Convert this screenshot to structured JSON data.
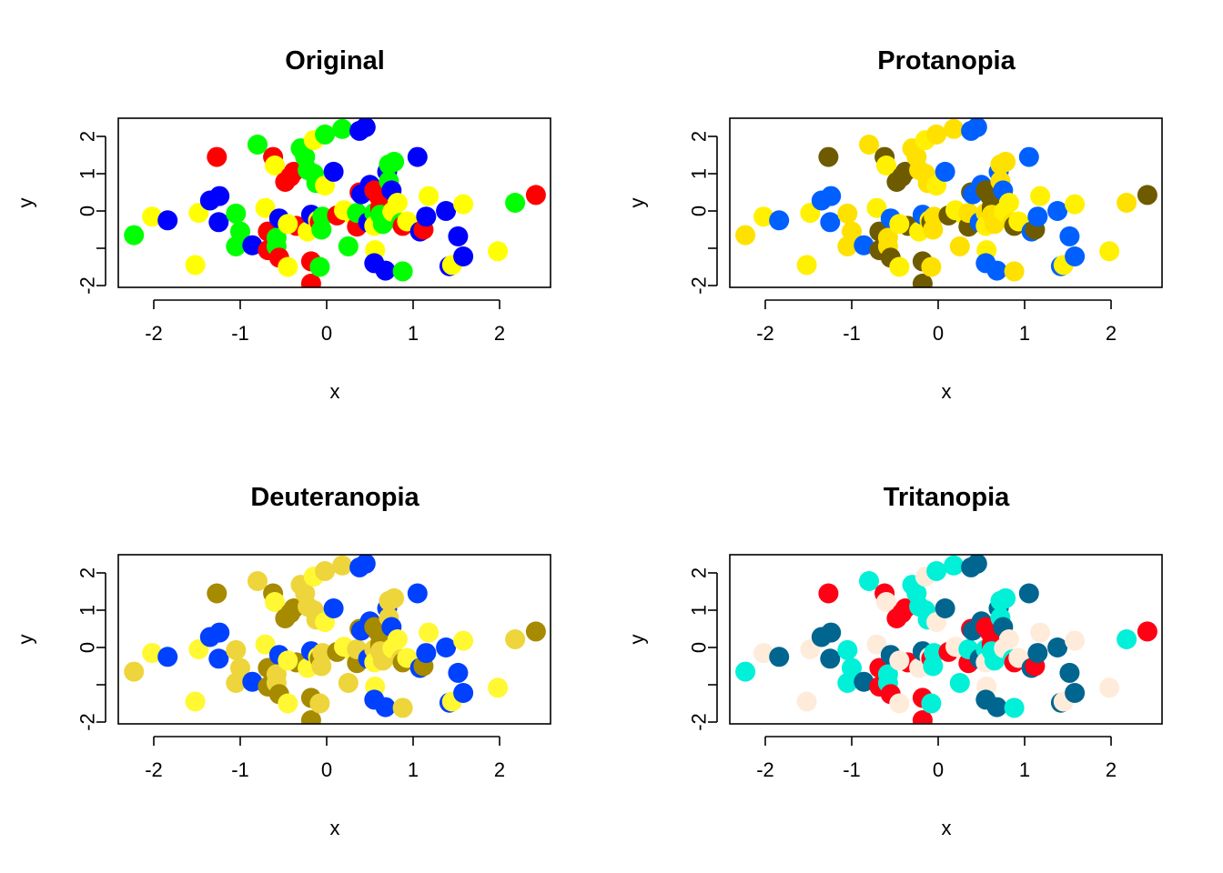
{
  "chart_data": [
    {
      "type": "scatter",
      "title": "Original",
      "xlabel": "x",
      "ylabel": "y",
      "xticks": [
        "-2",
        "-1",
        "0",
        "1",
        "2"
      ],
      "yticks": [
        "2",
        "1",
        "0",
        "",
        "-2"
      ],
      "palette": {
        "red": "#FF0000",
        "green": "#00FF00",
        "blue": "#0000FF",
        "yellow": "#FFFF00"
      }
    },
    {
      "type": "scatter",
      "title": "Protanopia",
      "xlabel": "x",
      "ylabel": "y",
      "xticks": [
        "-2",
        "-1",
        "0",
        "1",
        "2"
      ],
      "yticks": [
        "2",
        "1",
        "0",
        "",
        "-2"
      ],
      "palette": {
        "red": "#6E5B00",
        "green": "#FFE100",
        "blue": "#0060FF",
        "yellow": "#FFF100"
      }
    },
    {
      "type": "scatter",
      "title": "Deuteranopia",
      "xlabel": "x",
      "ylabel": "y",
      "xticks": [
        "-2",
        "-1",
        "0",
        "1",
        "2"
      ],
      "yticks": [
        "2",
        "1",
        "0",
        "",
        "-2"
      ],
      "palette": {
        "red": "#A68A00",
        "green": "#EED53B",
        "blue": "#0040FF",
        "yellow": "#FFF833"
      }
    },
    {
      "type": "scatter",
      "title": "Tritanopia",
      "xlabel": "x",
      "ylabel": "y",
      "xticks": [
        "-2",
        "-1",
        "0",
        "1",
        "2"
      ],
      "yticks": [
        "2",
        "1",
        "0",
        "",
        "-2"
      ],
      "palette": {
        "red": "#FF0014",
        "green": "#00F0D8",
        "blue": "#00658F",
        "yellow": "#FFEBDA"
      }
    }
  ],
  "axes": {
    "xlim": [
      -2.4,
      2.6
    ],
    "ylim": [
      -2.05,
      2.5
    ],
    "xtick_values": [
      -2,
      -1,
      0,
      1,
      2
    ],
    "ytick_values": [
      2,
      1,
      0,
      -1,
      -2
    ]
  },
  "points": [
    {
      "x": -2.23,
      "y": -0.65,
      "c": "green"
    },
    {
      "x": -2.02,
      "y": -0.15,
      "c": "yellow"
    },
    {
      "x": -1.84,
      "y": -0.25,
      "c": "blue"
    },
    {
      "x": -1.52,
      "y": -1.45,
      "c": "yellow"
    },
    {
      "x": -1.48,
      "y": -0.05,
      "c": "yellow"
    },
    {
      "x": -1.35,
      "y": 0.28,
      "c": "blue"
    },
    {
      "x": -1.27,
      "y": 1.45,
      "c": "red"
    },
    {
      "x": -1.24,
      "y": 0.4,
      "c": "blue"
    },
    {
      "x": -1.25,
      "y": -0.3,
      "c": "blue"
    },
    {
      "x": -1.05,
      "y": -0.07,
      "c": "green"
    },
    {
      "x": -1.0,
      "y": -0.55,
      "c": "green"
    },
    {
      "x": -1.05,
      "y": -0.95,
      "c": "green"
    },
    {
      "x": -0.86,
      "y": -0.92,
      "c": "blue"
    },
    {
      "x": -0.8,
      "y": 1.78,
      "c": "green"
    },
    {
      "x": -0.71,
      "y": 0.08,
      "c": "yellow"
    },
    {
      "x": -0.68,
      "y": -0.55,
      "c": "red"
    },
    {
      "x": -0.62,
      "y": 1.45,
      "c": "red"
    },
    {
      "x": -0.6,
      "y": 1.22,
      "c": "yellow"
    },
    {
      "x": -0.68,
      "y": -1.05,
      "c": "red"
    },
    {
      "x": -0.58,
      "y": -0.95,
      "c": "green"
    },
    {
      "x": -0.55,
      "y": -0.2,
      "c": "blue"
    },
    {
      "x": -0.55,
      "y": -1.25,
      "c": "red"
    },
    {
      "x": -0.58,
      "y": -0.72,
      "c": "green"
    },
    {
      "x": -0.48,
      "y": 0.78,
      "c": "red"
    },
    {
      "x": -0.42,
      "y": 0.92,
      "c": "red"
    },
    {
      "x": -0.38,
      "y": 1.05,
      "c": "red"
    },
    {
      "x": -0.35,
      "y": -0.4,
      "c": "red"
    },
    {
      "x": -0.45,
      "y": -0.35,
      "c": "yellow"
    },
    {
      "x": -0.45,
      "y": -1.5,
      "c": "yellow"
    },
    {
      "x": -0.3,
      "y": 1.68,
      "c": "green"
    },
    {
      "x": -0.25,
      "y": 1.45,
      "c": "green"
    },
    {
      "x": -0.22,
      "y": 1.1,
      "c": "green"
    },
    {
      "x": -0.22,
      "y": -0.55,
      "c": "yellow"
    },
    {
      "x": -0.15,
      "y": 1.9,
      "c": "yellow"
    },
    {
      "x": -0.15,
      "y": 1.0,
      "c": "green"
    },
    {
      "x": -0.12,
      "y": 0.75,
      "c": "green"
    },
    {
      "x": -0.18,
      "y": -0.1,
      "c": "blue"
    },
    {
      "x": -0.18,
      "y": -1.35,
      "c": "red"
    },
    {
      "x": -0.18,
      "y": -1.95,
      "c": "red"
    },
    {
      "x": -0.1,
      "y": -0.25,
      "c": "yellow"
    },
    {
      "x": -0.08,
      "y": -0.3,
      "c": "red"
    },
    {
      "x": -0.06,
      "y": -0.5,
      "c": "green"
    },
    {
      "x": -0.08,
      "y": -1.5,
      "c": "green"
    },
    {
      "x": -0.05,
      "y": -0.15,
      "c": "green"
    },
    {
      "x": -0.02,
      "y": 2.05,
      "c": "green"
    },
    {
      "x": -0.02,
      "y": 0.68,
      "c": "yellow"
    },
    {
      "x": 0.08,
      "y": 1.05,
      "c": "blue"
    },
    {
      "x": 0.12,
      "y": -0.12,
      "c": "red"
    },
    {
      "x": 0.18,
      "y": 2.2,
      "c": "green"
    },
    {
      "x": 0.2,
      "y": 0.02,
      "c": "yellow"
    },
    {
      "x": 0.25,
      "y": -0.95,
      "c": "green"
    },
    {
      "x": 0.3,
      "y": -0.1,
      "c": "yellow"
    },
    {
      "x": 0.35,
      "y": -0.42,
      "c": "red"
    },
    {
      "x": 0.35,
      "y": -0.05,
      "c": "green"
    },
    {
      "x": 0.38,
      "y": 2.15,
      "c": "blue"
    },
    {
      "x": 0.45,
      "y": 2.25,
      "c": "blue"
    },
    {
      "x": 0.38,
      "y": 0.5,
      "c": "red"
    },
    {
      "x": 0.4,
      "y": 0.45,
      "c": "blue"
    },
    {
      "x": 0.5,
      "y": 0.7,
      "c": "blue"
    },
    {
      "x": 0.48,
      "y": -0.3,
      "c": "blue"
    },
    {
      "x": 0.55,
      "y": 0.55,
      "c": "red"
    },
    {
      "x": 0.55,
      "y": -0.05,
      "c": "green"
    },
    {
      "x": 0.55,
      "y": -0.4,
      "c": "yellow"
    },
    {
      "x": 0.56,
      "y": -1.05,
      "c": "yellow"
    },
    {
      "x": 0.55,
      "y": -1.4,
      "c": "blue"
    },
    {
      "x": 0.6,
      "y": 0.4,
      "c": "red"
    },
    {
      "x": 0.62,
      "y": 0.1,
      "c": "red"
    },
    {
      "x": 0.62,
      "y": 0.0,
      "c": "red"
    },
    {
      "x": 0.62,
      "y": -0.1,
      "c": "green"
    },
    {
      "x": 0.65,
      "y": -0.35,
      "c": "green"
    },
    {
      "x": 0.68,
      "y": -1.6,
      "c": "blue"
    },
    {
      "x": 0.7,
      "y": 1.05,
      "c": "blue"
    },
    {
      "x": 0.72,
      "y": 1.25,
      "c": "green"
    },
    {
      "x": 0.72,
      "y": 0.8,
      "c": "green"
    },
    {
      "x": 0.75,
      "y": 0.55,
      "c": "blue"
    },
    {
      "x": 0.76,
      "y": -0.02,
      "c": "yellow"
    },
    {
      "x": 0.78,
      "y": 1.32,
      "c": "green"
    },
    {
      "x": 0.82,
      "y": 0.22,
      "c": "yellow"
    },
    {
      "x": 0.86,
      "y": -0.32,
      "c": "green"
    },
    {
      "x": 0.88,
      "y": -0.4,
      "c": "red"
    },
    {
      "x": 0.88,
      "y": -1.62,
      "c": "green"
    },
    {
      "x": 0.93,
      "y": -0.28,
      "c": "yellow"
    },
    {
      "x": 1.05,
      "y": 1.45,
      "c": "blue"
    },
    {
      "x": 1.08,
      "y": -0.55,
      "c": "blue"
    },
    {
      "x": 1.12,
      "y": -0.5,
      "c": "red"
    },
    {
      "x": 1.15,
      "y": -0.15,
      "c": "blue"
    },
    {
      "x": 1.18,
      "y": 0.4,
      "c": "yellow"
    },
    {
      "x": 1.38,
      "y": 0.0,
      "c": "blue"
    },
    {
      "x": 1.42,
      "y": -1.48,
      "c": "blue"
    },
    {
      "x": 1.45,
      "y": -1.45,
      "c": "yellow"
    },
    {
      "x": 1.52,
      "y": -0.68,
      "c": "blue"
    },
    {
      "x": 1.58,
      "y": 0.18,
      "c": "yellow"
    },
    {
      "x": 1.58,
      "y": -1.22,
      "c": "blue"
    },
    {
      "x": 1.98,
      "y": -1.08,
      "c": "yellow"
    },
    {
      "x": 2.18,
      "y": 0.22,
      "c": "green"
    },
    {
      "x": 2.42,
      "y": 0.43,
      "c": "red"
    }
  ]
}
